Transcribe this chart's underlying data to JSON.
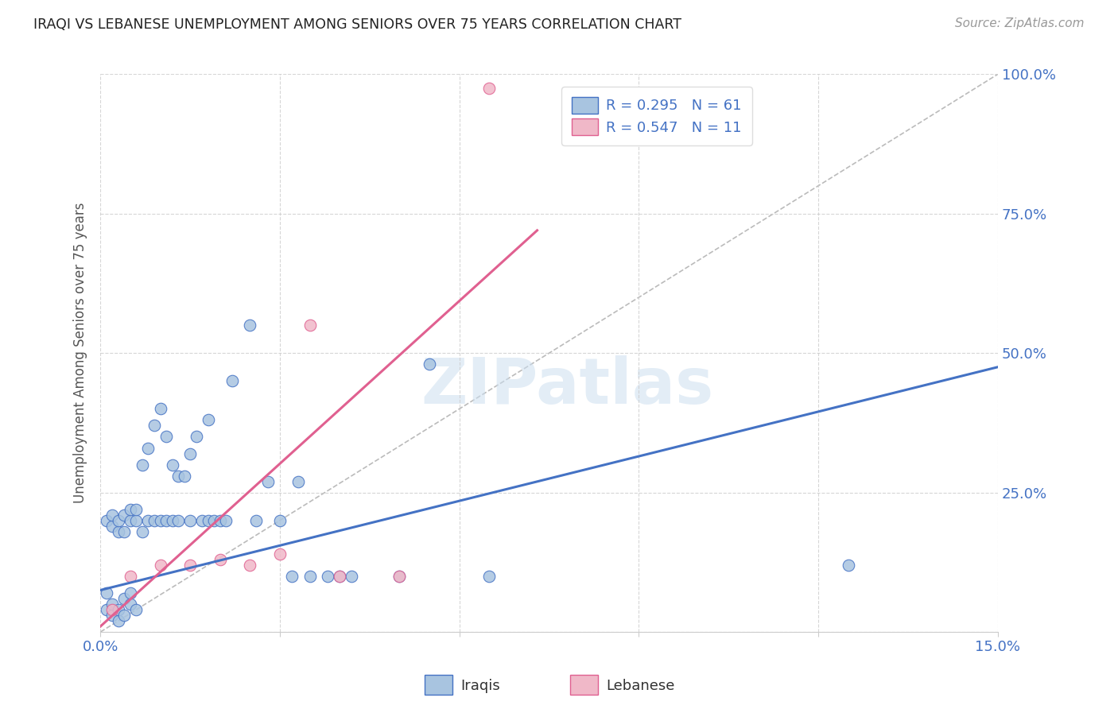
{
  "title": "IRAQI VS LEBANESE UNEMPLOYMENT AMONG SENIORS OVER 75 YEARS CORRELATION CHART",
  "source": "Source: ZipAtlas.com",
  "ylabel": "Unemployment Among Seniors over 75 years",
  "xlim": [
    0.0,
    0.15
  ],
  "ylim": [
    0.0,
    1.0
  ],
  "watermark": "ZIPatlas",
  "color_iraqi_fill": "#a8c4e0",
  "color_iraqi_edge": "#4472C4",
  "color_lebanese_fill": "#f0b8c8",
  "color_lebanese_edge": "#e06090",
  "color_line_iraqi": "#4472C4",
  "color_line_lebanese": "#e06090",
  "color_axis": "#4472C4",
  "color_grid": "#cccccc",
  "color_ref_line": "#bbbbbb",
  "legend_text_color": "#4472C4",
  "legend_label_color": "#222222",
  "iraqi_x": [
    0.001,
    0.001,
    0.001,
    0.002,
    0.002,
    0.002,
    0.002,
    0.003,
    0.003,
    0.003,
    0.003,
    0.004,
    0.004,
    0.004,
    0.004,
    0.005,
    0.005,
    0.005,
    0.005,
    0.006,
    0.006,
    0.006,
    0.007,
    0.007,
    0.008,
    0.008,
    0.009,
    0.009,
    0.01,
    0.01,
    0.011,
    0.011,
    0.012,
    0.012,
    0.013,
    0.013,
    0.014,
    0.015,
    0.015,
    0.016,
    0.017,
    0.018,
    0.018,
    0.019,
    0.02,
    0.021,
    0.022,
    0.025,
    0.026,
    0.028,
    0.03,
    0.032,
    0.033,
    0.035,
    0.038,
    0.04,
    0.042,
    0.05,
    0.055,
    0.065,
    0.125
  ],
  "iraqi_y": [
    0.04,
    0.07,
    0.2,
    0.03,
    0.05,
    0.19,
    0.21,
    0.02,
    0.04,
    0.18,
    0.2,
    0.03,
    0.06,
    0.18,
    0.21,
    0.05,
    0.07,
    0.2,
    0.22,
    0.04,
    0.2,
    0.22,
    0.18,
    0.3,
    0.2,
    0.33,
    0.2,
    0.37,
    0.2,
    0.4,
    0.2,
    0.35,
    0.2,
    0.3,
    0.2,
    0.28,
    0.28,
    0.2,
    0.32,
    0.35,
    0.2,
    0.2,
    0.38,
    0.2,
    0.2,
    0.2,
    0.45,
    0.55,
    0.2,
    0.27,
    0.2,
    0.1,
    0.27,
    0.1,
    0.1,
    0.1,
    0.1,
    0.1,
    0.48,
    0.1,
    0.12
  ],
  "lebanese_x": [
    0.002,
    0.005,
    0.01,
    0.015,
    0.02,
    0.025,
    0.03,
    0.035,
    0.04,
    0.05,
    0.065
  ],
  "lebanese_y": [
    0.04,
    0.1,
    0.12,
    0.12,
    0.13,
    0.12,
    0.14,
    0.55,
    0.1,
    0.1,
    0.975
  ],
  "iraqi_line_x0": 0.0,
  "iraqi_line_y0": 0.075,
  "iraqi_line_x1": 0.15,
  "iraqi_line_y1": 0.475,
  "leb_line_x0": 0.0,
  "leb_line_y0": 0.01,
  "leb_line_x1": 0.073,
  "leb_line_y1": 0.72
}
